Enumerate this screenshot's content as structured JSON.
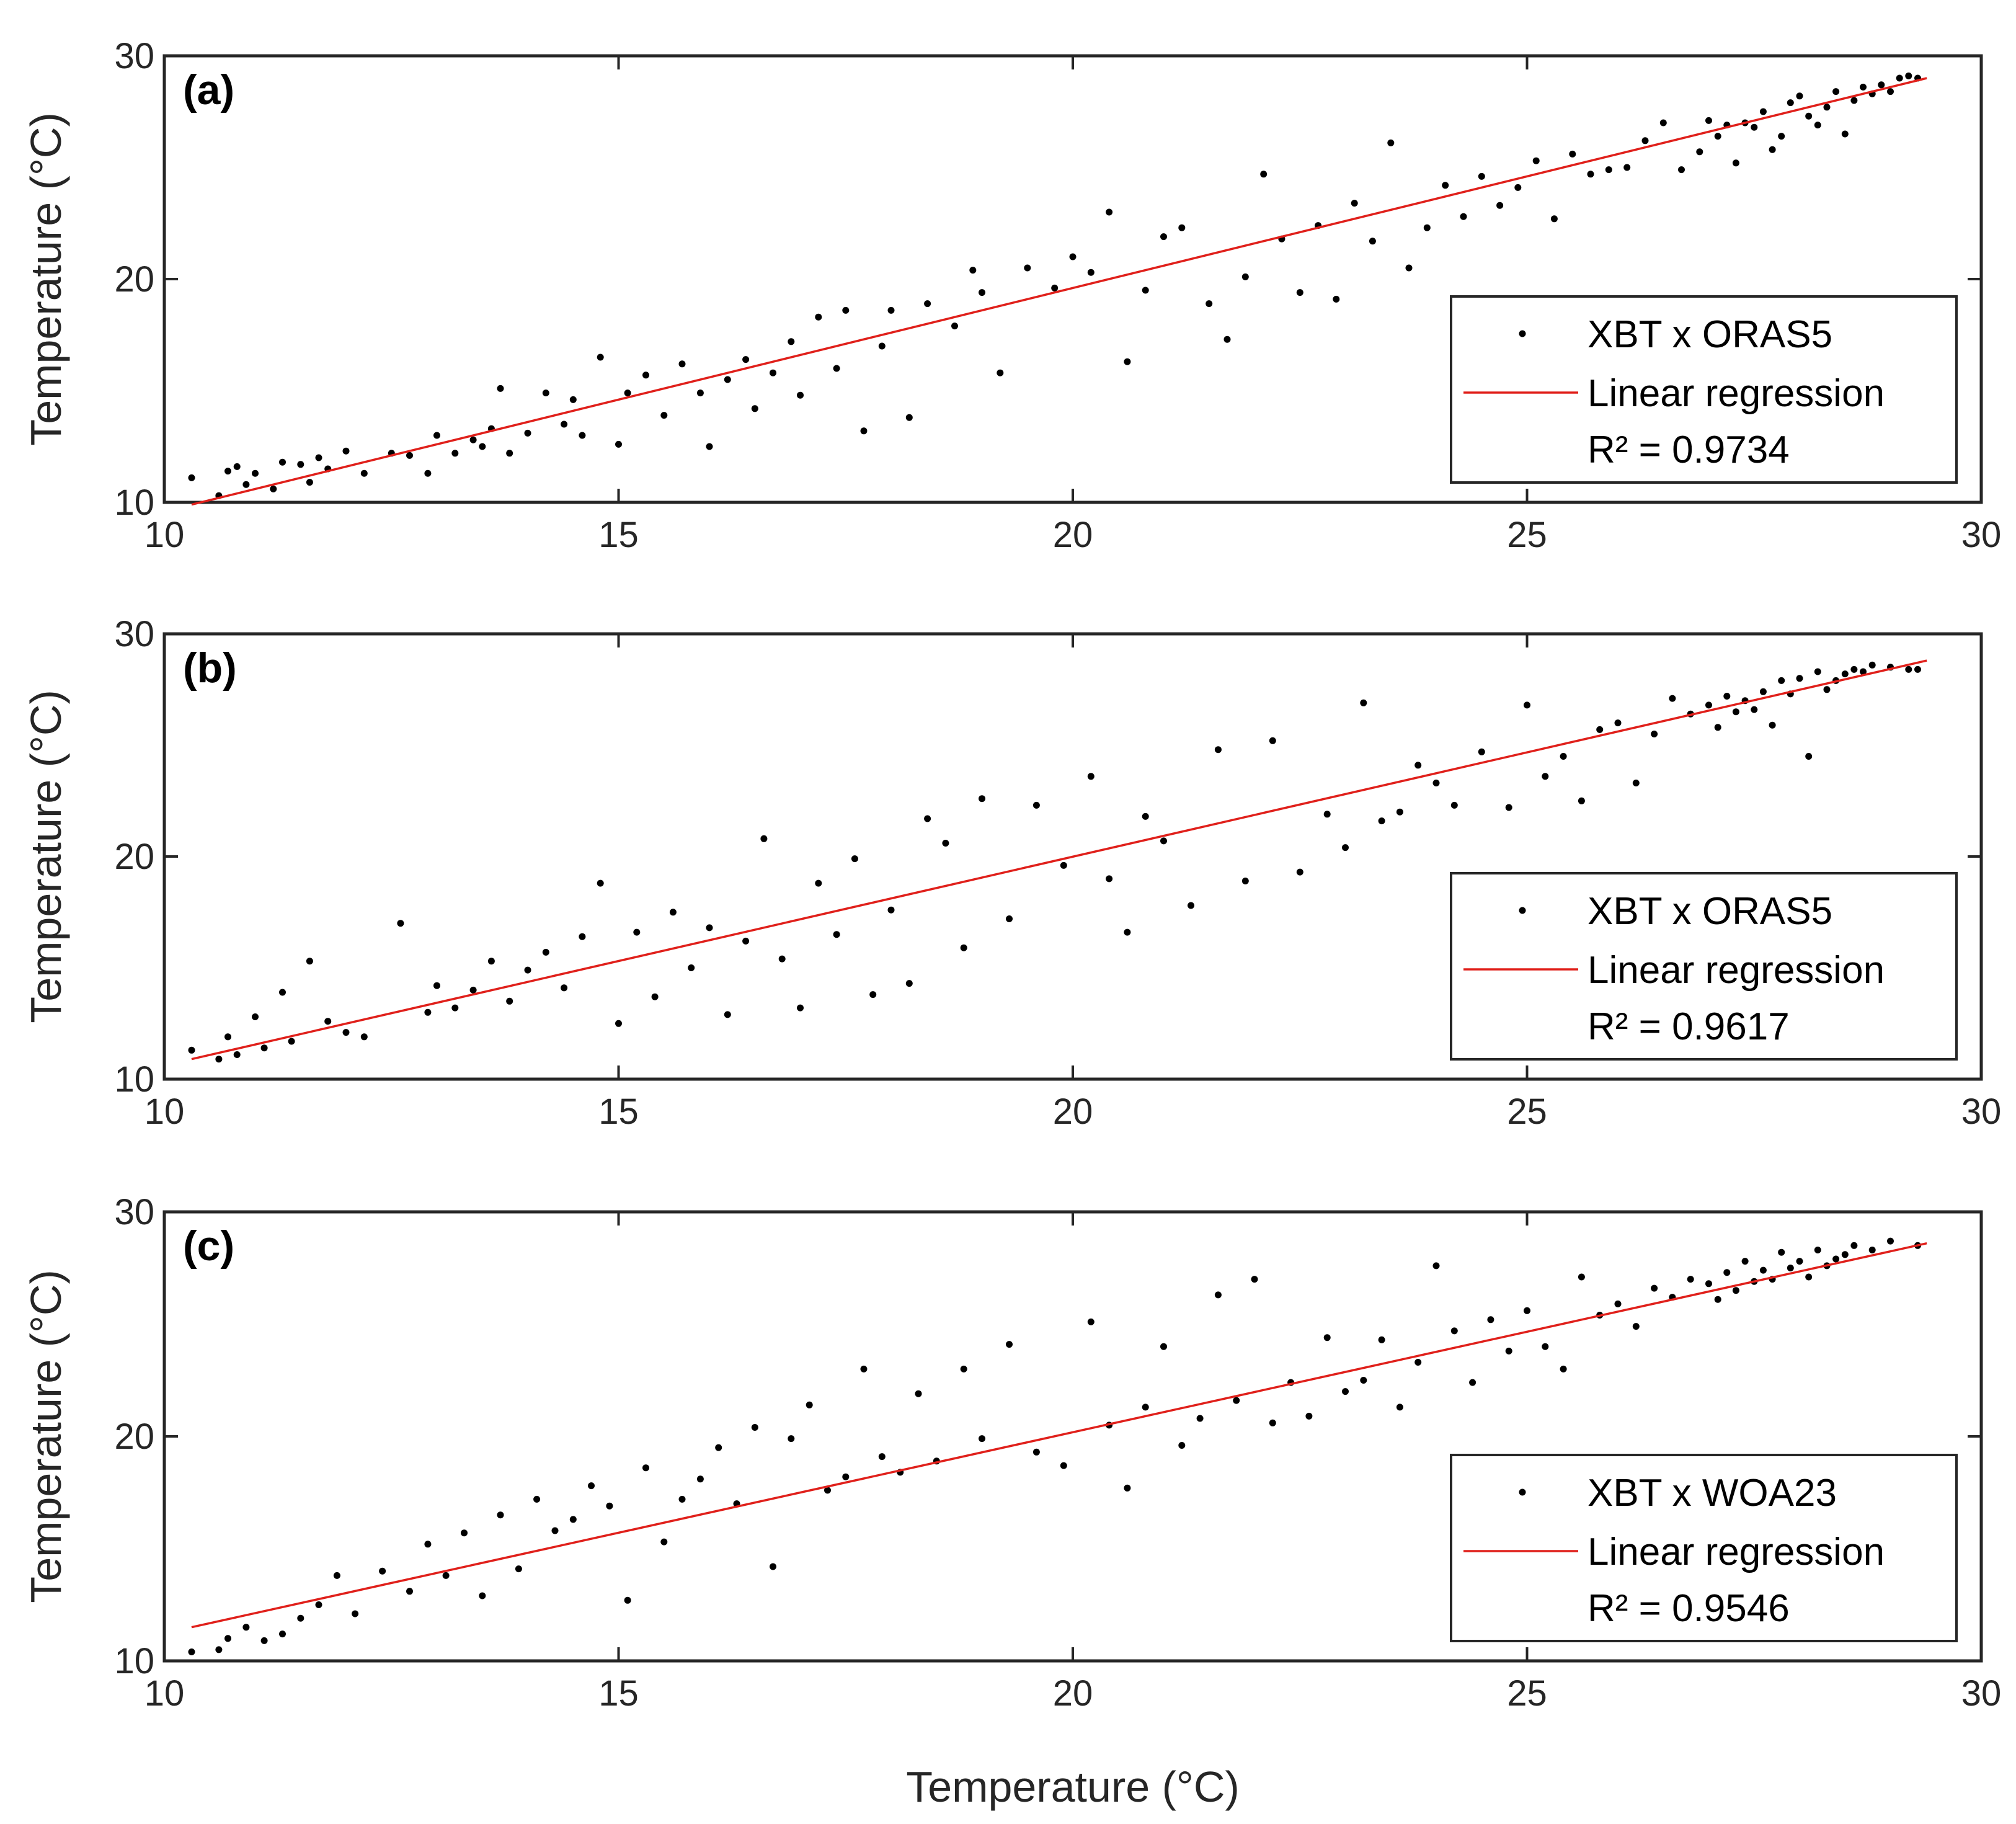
{
  "figure": {
    "x_axis_title": "Temperature (°C)"
  },
  "colors": {
    "points": "#000000",
    "regression": "#e0201b",
    "axes": "#262626"
  },
  "chart_data": [
    {
      "type": "scatter",
      "panel": "(a)",
      "xlabel": "",
      "ylabel": "Temperature (°C)",
      "xlim": [
        10,
        30
      ],
      "ylim": [
        10,
        30
      ],
      "xticks": [
        "10",
        "15",
        "20",
        "25",
        "30"
      ],
      "yticks": [
        "10",
        "20",
        "30"
      ],
      "legend": {
        "position": "lower-right",
        "points_label": "XBT x ORAS5",
        "line_label": "Linear regression",
        "r2_label": "R² = 0.9734"
      },
      "regression": {
        "x": [
          10.3,
          29.4
        ],
        "y": [
          9.9,
          29.0
        ]
      },
      "series": [
        {
          "name": "XBT x ORAS5",
          "x": [
            10.3,
            10.6,
            10.7,
            10.8,
            10.9,
            11.0,
            11.2,
            11.3,
            11.5,
            11.6,
            11.7,
            11.8,
            12.0,
            12.2,
            12.5,
            12.7,
            12.9,
            13.0,
            13.2,
            13.4,
            13.5,
            13.6,
            13.7,
            13.8,
            14.0,
            14.2,
            14.4,
            14.5,
            14.6,
            14.8,
            15.0,
            15.1,
            15.3,
            15.5,
            15.7,
            15.9,
            16.0,
            16.2,
            16.4,
            16.5,
            16.7,
            16.9,
            17.0,
            17.2,
            17.4,
            17.5,
            17.7,
            17.9,
            18.0,
            18.2,
            18.4,
            18.7,
            18.9,
            19.0,
            19.2,
            19.5,
            19.8,
            20.0,
            20.2,
            20.4,
            20.6,
            20.8,
            21.0,
            21.2,
            21.5,
            21.7,
            21.9,
            22.1,
            22.3,
            22.5,
            22.7,
            22.9,
            23.1,
            23.3,
            23.5,
            23.7,
            23.9,
            24.1,
            24.3,
            24.5,
            24.7,
            24.9,
            25.1,
            25.3,
            25.5,
            25.7,
            25.9,
            26.1,
            26.3,
            26.5,
            26.7,
            26.9,
            27.0,
            27.1,
            27.2,
            27.3,
            27.4,
            27.5,
            27.6,
            27.7,
            27.8,
            27.9,
            28.0,
            28.1,
            28.2,
            28.3,
            28.4,
            28.5,
            28.6,
            28.7,
            28.8,
            28.9,
            29.0,
            29.1,
            29.2,
            29.3
          ],
          "y": [
            11.1,
            10.3,
            11.4,
            11.6,
            10.8,
            11.3,
            10.6,
            11.8,
            11.7,
            10.9,
            12.0,
            11.5,
            12.3,
            11.3,
            12.2,
            12.1,
            11.3,
            13.0,
            12.2,
            12.8,
            12.5,
            13.3,
            15.1,
            12.2,
            13.1,
            14.9,
            13.5,
            14.6,
            13.0,
            16.5,
            12.6,
            14.9,
            15.7,
            13.9,
            16.2,
            14.9,
            12.5,
            15.5,
            16.4,
            14.2,
            15.8,
            17.2,
            14.8,
            18.3,
            16.0,
            18.6,
            13.2,
            17.0,
            18.6,
            13.8,
            18.9,
            17.9,
            20.4,
            19.4,
            15.8,
            20.5,
            19.6,
            21.0,
            20.3,
            23.0,
            16.3,
            19.5,
            21.9,
            22.3,
            18.9,
            17.3,
            20.1,
            24.7,
            21.8,
            19.4,
            22.4,
            19.1,
            23.4,
            21.7,
            26.1,
            20.5,
            22.3,
            24.2,
            22.8,
            24.6,
            23.3,
            24.1,
            25.3,
            22.7,
            25.6,
            24.7,
            24.9,
            25.0,
            26.2,
            27.0,
            24.9,
            25.7,
            27.1,
            26.4,
            26.9,
            25.2,
            27.0,
            26.8,
            27.5,
            25.8,
            26.4,
            27.9,
            28.2,
            27.3,
            26.9,
            27.7,
            28.4,
            26.5,
            28.0,
            28.6,
            28.3,
            28.7,
            28.4,
            29.0,
            29.1,
            29.0
          ]
        }
      ]
    },
    {
      "type": "scatter",
      "panel": "(b)",
      "xlabel": "",
      "ylabel": "Temperature (°C)",
      "xlim": [
        10,
        30
      ],
      "ylim": [
        10,
        30
      ],
      "xticks": [
        "10",
        "15",
        "20",
        "25",
        "30"
      ],
      "yticks": [
        "10",
        "20",
        "30"
      ],
      "legend": {
        "position": "lower-right",
        "points_label": "XBT x ORAS5",
        "line_label": "Linear regression",
        "r2_label": "R² = 0.9617"
      },
      "regression": {
        "x": [
          10.3,
          29.4
        ],
        "y": [
          10.9,
          28.8
        ]
      },
      "series": [
        {
          "name": "XBT x ORAS5",
          "x": [
            10.3,
            10.6,
            10.7,
            10.8,
            11.0,
            11.1,
            11.3,
            11.4,
            11.6,
            11.8,
            12.0,
            12.2,
            12.6,
            12.9,
            13.0,
            13.2,
            13.4,
            13.6,
            13.8,
            14.0,
            14.2,
            14.4,
            14.6,
            14.8,
            15.0,
            15.2,
            15.4,
            15.6,
            15.8,
            16.0,
            16.2,
            16.4,
            16.6,
            16.8,
            17.0,
            17.2,
            17.4,
            17.6,
            17.8,
            18.0,
            18.2,
            18.4,
            18.6,
            18.8,
            19.0,
            19.3,
            19.6,
            19.9,
            20.2,
            20.4,
            20.6,
            20.8,
            21.0,
            21.3,
            21.6,
            21.9,
            22.2,
            22.5,
            22.8,
            23.0,
            23.2,
            23.4,
            23.6,
            23.8,
            24.0,
            24.2,
            24.5,
            24.8,
            25.0,
            25.2,
            25.4,
            25.6,
            25.8,
            26.0,
            26.2,
            26.4,
            26.6,
            26.8,
            27.0,
            27.1,
            27.2,
            27.3,
            27.4,
            27.5,
            27.6,
            27.7,
            27.8,
            27.9,
            28.0,
            28.1,
            28.2,
            28.3,
            28.4,
            28.5,
            28.6,
            28.7,
            28.8,
            29.0,
            29.2,
            29.3
          ],
          "y": [
            11.3,
            10.9,
            11.9,
            11.1,
            12.8,
            11.4,
            13.9,
            11.7,
            15.3,
            12.6,
            12.1,
            11.9,
            17.0,
            13.0,
            14.2,
            13.2,
            14.0,
            15.3,
            13.5,
            14.9,
            15.7,
            14.1,
            16.4,
            18.8,
            12.5,
            16.6,
            13.7,
            17.5,
            15.0,
            16.8,
            12.9,
            16.2,
            20.8,
            15.4,
            13.2,
            18.8,
            16.5,
            19.9,
            13.8,
            17.6,
            14.3,
            21.7,
            20.6,
            15.9,
            22.6,
            17.2,
            22.3,
            19.6,
            23.6,
            19.0,
            16.6,
            21.8,
            20.7,
            17.8,
            24.8,
            18.9,
            25.2,
            19.3,
            21.9,
            20.4,
            26.9,
            21.6,
            22.0,
            24.1,
            23.3,
            22.3,
            24.7,
            22.2,
            26.8,
            23.6,
            24.5,
            22.5,
            25.7,
            26.0,
            23.3,
            25.5,
            27.1,
            26.4,
            26.8,
            25.8,
            27.2,
            26.5,
            27.0,
            26.6,
            27.4,
            25.9,
            27.9,
            27.3,
            28.0,
            24.5,
            28.3,
            27.5,
            27.9,
            28.2,
            28.4,
            28.3,
            28.6,
            28.5,
            28.4,
            28.4
          ]
        }
      ]
    },
    {
      "type": "scatter",
      "panel": "(c)",
      "xlabel": "Temperature (°C)",
      "ylabel": "Temperature (°C)",
      "xlim": [
        10,
        30
      ],
      "ylim": [
        10,
        30
      ],
      "xticks": [
        "10",
        "15",
        "20",
        "25",
        "30"
      ],
      "yticks": [
        "10",
        "20",
        "30"
      ],
      "legend": {
        "position": "lower-right",
        "points_label": "XBT x WOA23",
        "line_label": "Linear regression",
        "r2_label": "R² = 0.9546"
      },
      "regression": {
        "x": [
          10.3,
          29.4
        ],
        "y": [
          11.5,
          28.6
        ]
      },
      "series": [
        {
          "name": "XBT x WOA23",
          "x": [
            10.3,
            10.6,
            10.7,
            10.9,
            11.1,
            11.3,
            11.5,
            11.7,
            11.9,
            12.1,
            12.4,
            12.7,
            12.9,
            13.1,
            13.3,
            13.5,
            13.7,
            13.9,
            14.1,
            14.3,
            14.5,
            14.7,
            14.9,
            15.1,
            15.3,
            15.5,
            15.7,
            15.9,
            16.1,
            16.3,
            16.5,
            16.7,
            16.9,
            17.1,
            17.3,
            17.5,
            17.7,
            17.9,
            18.1,
            18.3,
            18.5,
            18.8,
            19.0,
            19.3,
            19.6,
            19.9,
            20.2,
            20.4,
            20.6,
            20.8,
            21.0,
            21.2,
            21.4,
            21.6,
            21.8,
            22.0,
            22.2,
            22.4,
            22.6,
            22.8,
            23.0,
            23.2,
            23.4,
            23.6,
            23.8,
            24.0,
            24.2,
            24.4,
            24.6,
            24.8,
            25.0,
            25.2,
            25.4,
            25.6,
            25.8,
            26.0,
            26.2,
            26.4,
            26.6,
            26.8,
            27.0,
            27.1,
            27.2,
            27.3,
            27.4,
            27.5,
            27.6,
            27.7,
            27.8,
            27.9,
            28.0,
            28.1,
            28.2,
            28.3,
            28.4,
            28.5,
            28.6,
            28.8,
            29.0,
            29.3
          ],
          "y": [
            10.4,
            10.5,
            11.0,
            11.5,
            10.9,
            11.2,
            11.9,
            12.5,
            13.8,
            12.1,
            14.0,
            13.1,
            15.2,
            13.8,
            15.7,
            12.9,
            16.5,
            14.1,
            17.2,
            15.8,
            16.3,
            17.8,
            16.9,
            12.7,
            18.6,
            15.3,
            17.2,
            18.1,
            19.5,
            17.0,
            20.4,
            14.2,
            19.9,
            21.4,
            17.6,
            18.2,
            23.0,
            19.1,
            18.4,
            21.9,
            18.9,
            23.0,
            19.9,
            24.1,
            19.3,
            18.7,
            25.1,
            20.5,
            17.7,
            21.3,
            24.0,
            19.6,
            20.8,
            26.3,
            21.6,
            27.0,
            20.6,
            22.4,
            20.9,
            24.4,
            22.0,
            22.5,
            24.3,
            21.3,
            23.3,
            27.6,
            24.7,
            22.4,
            25.2,
            23.8,
            25.6,
            24.0,
            23.0,
            27.1,
            25.4,
            25.9,
            24.9,
            26.6,
            26.2,
            27.0,
            26.8,
            26.1,
            27.3,
            26.5,
            27.8,
            26.9,
            27.4,
            27.0,
            28.2,
            27.5,
            27.8,
            27.1,
            28.3,
            27.6,
            27.9,
            28.1,
            28.5,
            28.3,
            28.7,
            28.5
          ]
        }
      ]
    }
  ]
}
